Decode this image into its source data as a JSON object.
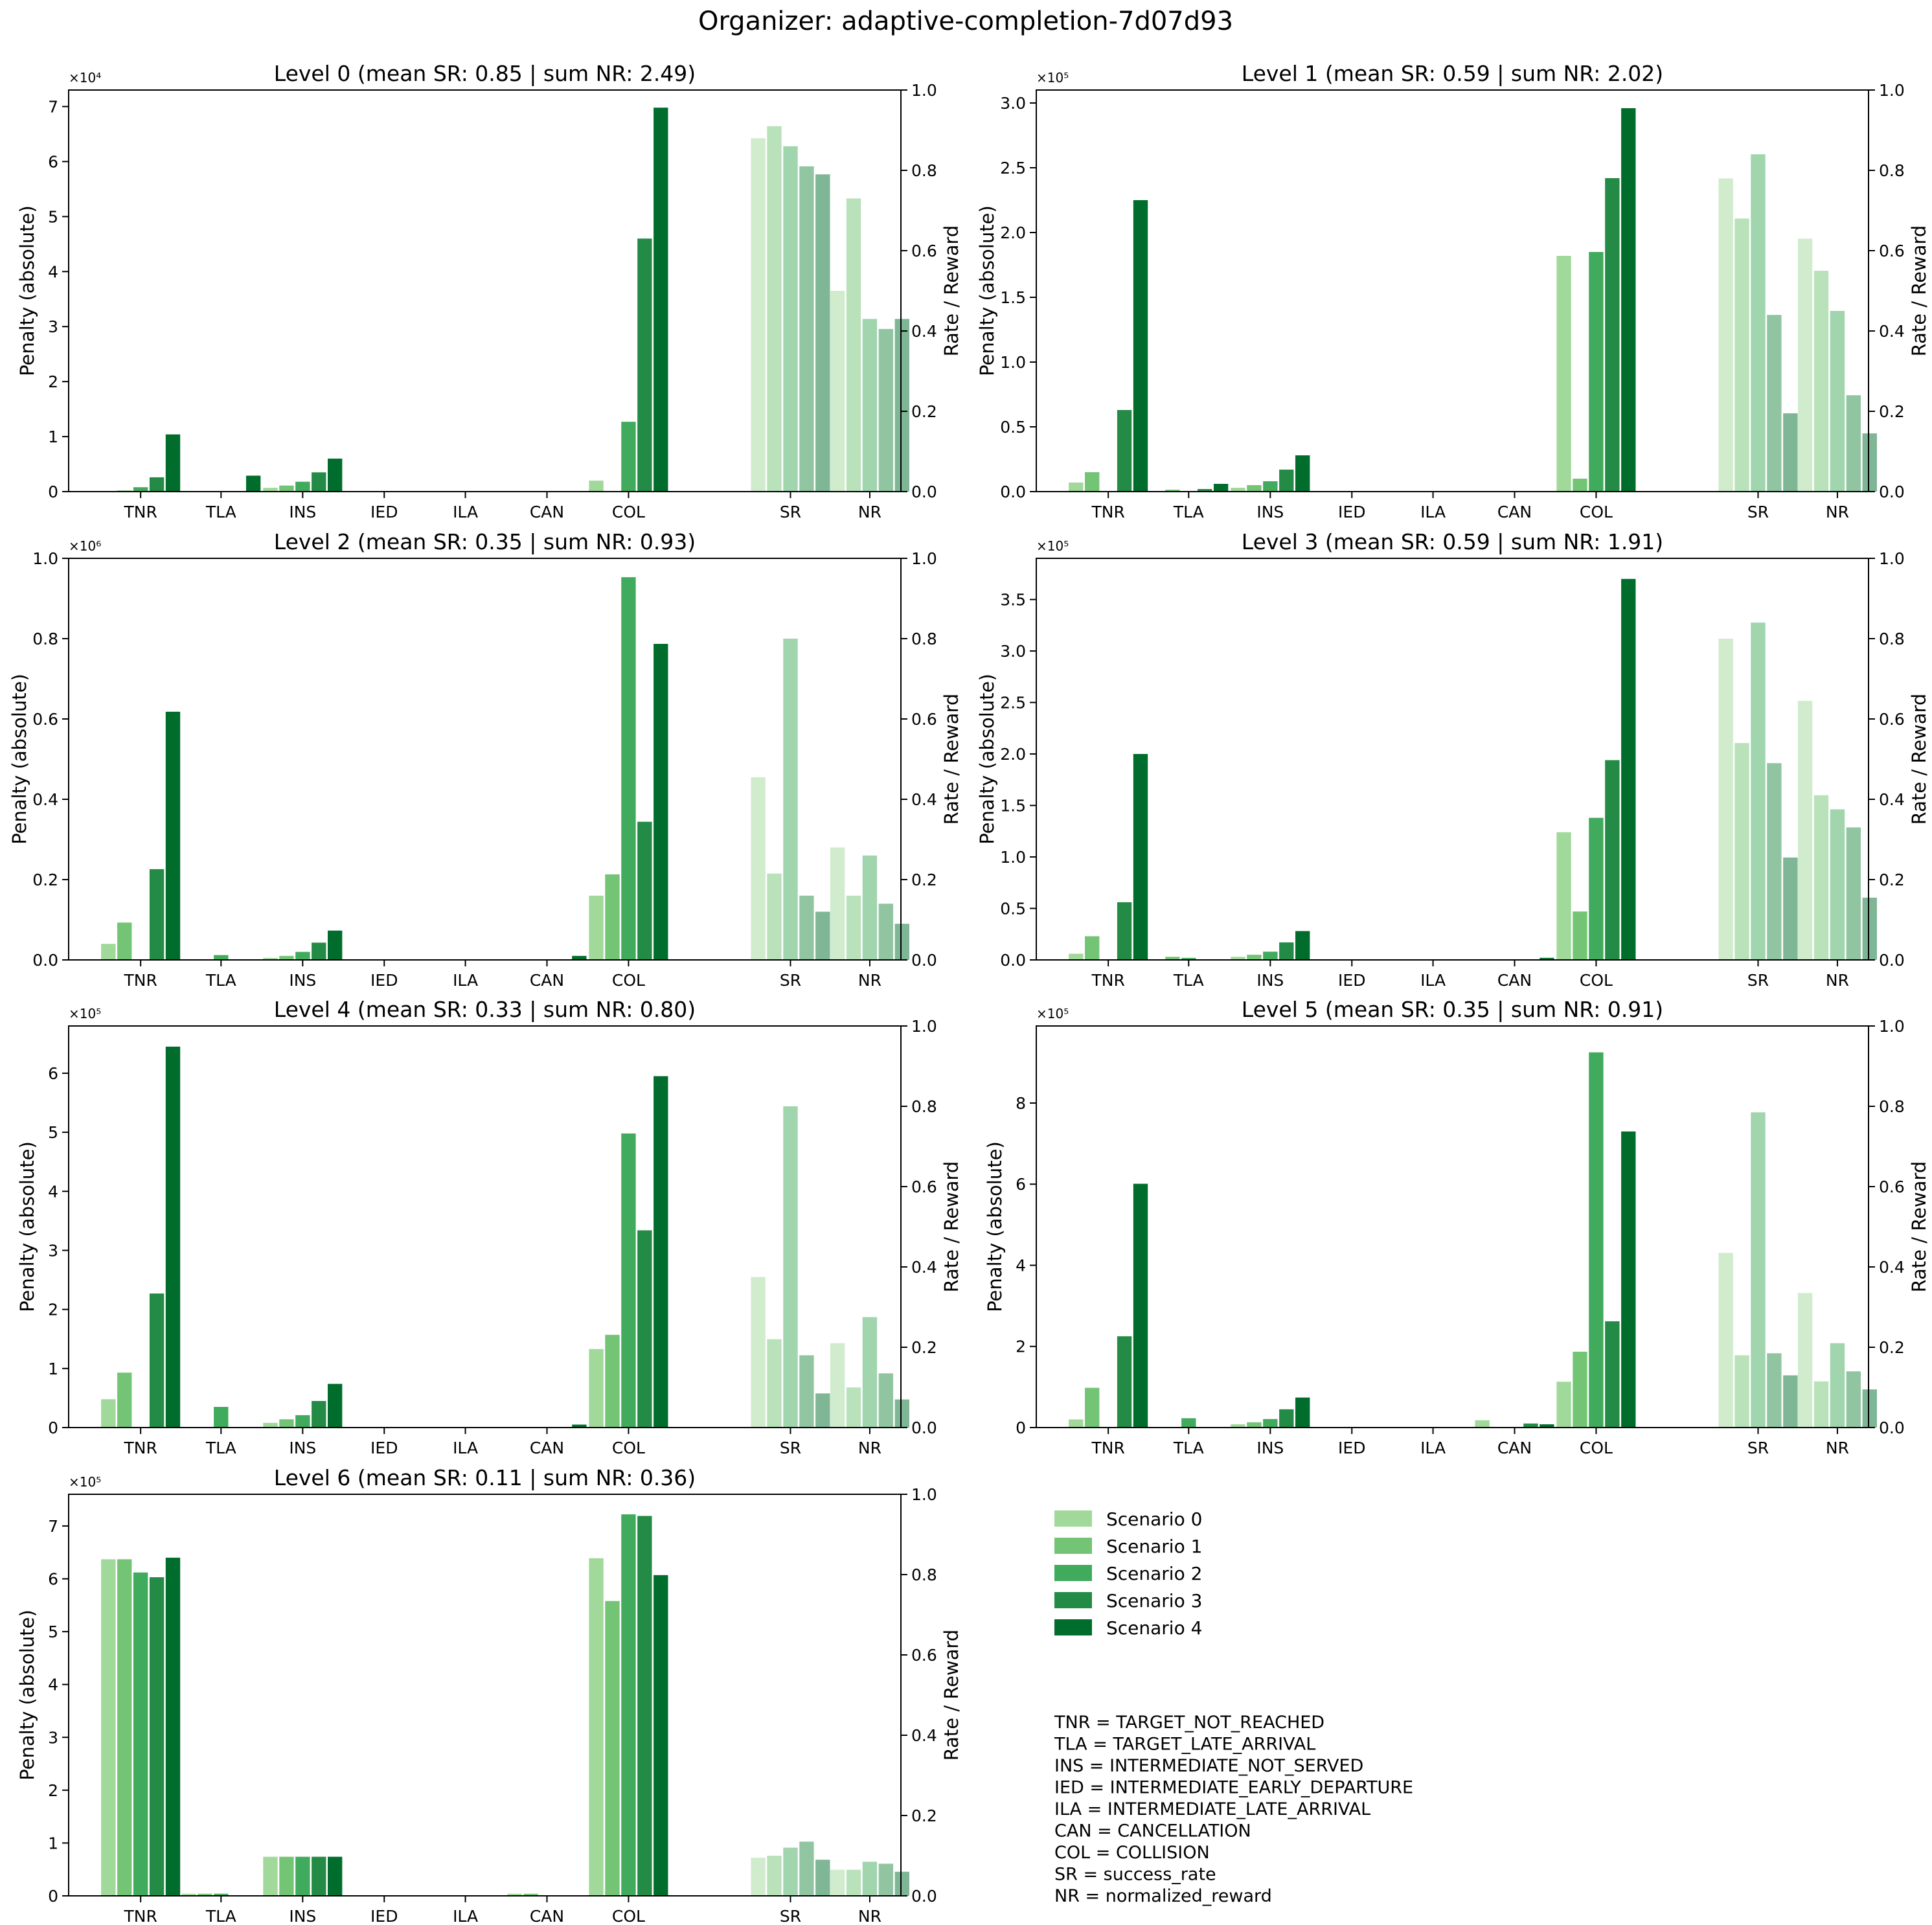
{
  "figure_title": "Organizer: adaptive-completion-7d07d93",
  "left_axis_label": "Penalty (absolute)",
  "right_axis_label": "Rate / Reward",
  "scenario_colors": [
    "#a1d99b",
    "#74c476",
    "#41ab5d",
    "#238b45",
    "#006d2c"
  ],
  "legend": {
    "entries": [
      "Scenario 0",
      "Scenario 1",
      "Scenario 2",
      "Scenario 3",
      "Scenario 4"
    ]
  },
  "abbreviations": [
    "TNR = TARGET_NOT_REACHED",
    "TLA = TARGET_LATE_ARRIVAL",
    "INS = INTERMEDIATE_NOT_SERVED",
    "IED = INTERMEDIATE_EARLY_DEPARTURE",
    "ILA = INTERMEDIATE_LATE_ARRIVAL",
    "CAN = CANCELLATION",
    "COL = COLLISION",
    "SR = success_rate",
    "NR = normalized_reward"
  ],
  "chart_data": [
    {
      "type": "bar",
      "title": "Level 0 (mean SR: 0.85 | sum NR: 2.49)",
      "categories": [
        "TNR",
        "TLA",
        "INS",
        "IED",
        "ILA",
        "CAN",
        "COL",
        "SR",
        "NR"
      ],
      "left_scale_label": "×10⁴",
      "left_ylim": [
        0,
        73000
      ],
      "left_ticks": [
        0,
        10000,
        20000,
        30000,
        40000,
        50000,
        60000,
        70000
      ],
      "left_tick_labels": [
        "0",
        "1",
        "2",
        "3",
        "4",
        "5",
        "6",
        "7"
      ],
      "right_ylim": [
        0,
        1
      ],
      "right_tick_labels": [
        "0.0",
        "0.2",
        "0.4",
        "0.6",
        "0.8",
        "1.0"
      ],
      "series": [
        {
          "name": "Scenario 0",
          "penalties": [
            0,
            0,
            700,
            0,
            0,
            0,
            2000
          ],
          "SR": 0.88,
          "NR": 0.5
        },
        {
          "name": "Scenario 1",
          "penalties": [
            200,
            0,
            1100,
            0,
            0,
            0,
            0
          ],
          "SR": 0.91,
          "NR": 0.73
        },
        {
          "name": "Scenario 2",
          "penalties": [
            800,
            0,
            1800,
            0,
            0,
            0,
            12700
          ],
          "SR": 0.86,
          "NR": 0.43
        },
        {
          "name": "Scenario 3",
          "penalties": [
            2600,
            0,
            3500,
            0,
            0,
            0,
            46000
          ],
          "SR": 0.81,
          "NR": 0.405
        },
        {
          "name": "Scenario 4",
          "penalties": [
            10400,
            2900,
            6000,
            0,
            0,
            0,
            69800
          ],
          "SR": 0.79,
          "NR": 0.43
        }
      ]
    },
    {
      "type": "bar",
      "title": "Level 1 (mean SR: 0.59 | sum NR: 2.02)",
      "categories": [
        "TNR",
        "TLA",
        "INS",
        "IED",
        "ILA",
        "CAN",
        "COL",
        "SR",
        "NR"
      ],
      "left_scale_label": "×10⁵",
      "left_ylim": [
        0,
        310000
      ],
      "left_ticks": [
        0,
        50000,
        100000,
        150000,
        200000,
        250000,
        300000
      ],
      "left_tick_labels": [
        "0.0",
        "0.5",
        "1.0",
        "1.5",
        "2.0",
        "2.5",
        "3.0"
      ],
      "right_ylim": [
        0,
        1
      ],
      "right_tick_labels": [
        "0.0",
        "0.2",
        "0.4",
        "0.6",
        "0.8",
        "1.0"
      ],
      "series": [
        {
          "name": "Scenario 0",
          "penalties": [
            7000,
            500,
            3000,
            0,
            0,
            0,
            182000
          ],
          "SR": 0.78,
          "NR": 0.63
        },
        {
          "name": "Scenario 1",
          "penalties": [
            15000,
            1500,
            5000,
            0,
            0,
            0,
            10000
          ],
          "SR": 0.68,
          "NR": 0.55
        },
        {
          "name": "Scenario 2",
          "penalties": [
            0,
            0,
            8000,
            0,
            0,
            0,
            185000
          ],
          "SR": 0.84,
          "NR": 0.45
        },
        {
          "name": "Scenario 3",
          "penalties": [
            63000,
            2000,
            17000,
            0,
            0,
            0,
            242000
          ],
          "SR": 0.44,
          "NR": 0.24
        },
        {
          "name": "Scenario 4",
          "penalties": [
            225000,
            6000,
            28000,
            0,
            0,
            0,
            296000
          ],
          "SR": 0.195,
          "NR": 0.145
        }
      ]
    },
    {
      "type": "bar",
      "title": "Level 2 (mean SR: 0.35 | sum NR: 0.93)",
      "categories": [
        "TNR",
        "TLA",
        "INS",
        "IED",
        "ILA",
        "CAN",
        "COL",
        "SR",
        "NR"
      ],
      "left_scale_label": "×10⁶",
      "left_ylim": [
        0,
        1000000
      ],
      "left_ticks": [
        0,
        200000,
        400000,
        600000,
        800000,
        1000000
      ],
      "left_tick_labels": [
        "0.0",
        "0.2",
        "0.4",
        "0.6",
        "0.8",
        "1.0"
      ],
      "right_ylim": [
        0,
        1
      ],
      "right_tick_labels": [
        "0.0",
        "0.2",
        "0.4",
        "0.6",
        "0.8",
        "1.0"
      ],
      "series": [
        {
          "name": "Scenario 0",
          "penalties": [
            40000,
            0,
            5000,
            0,
            0,
            0,
            160000
          ],
          "SR": 0.455,
          "NR": 0.28
        },
        {
          "name": "Scenario 1",
          "penalties": [
            93000,
            0,
            10000,
            0,
            0,
            0,
            213000
          ],
          "SR": 0.215,
          "NR": 0.16
        },
        {
          "name": "Scenario 2",
          "penalties": [
            0,
            12000,
            20000,
            0,
            0,
            0,
            953000
          ],
          "SR": 0.8,
          "NR": 0.26
        },
        {
          "name": "Scenario 3",
          "penalties": [
            226000,
            0,
            43000,
            0,
            0,
            0,
            344000
          ],
          "SR": 0.16,
          "NR": 0.14
        },
        {
          "name": "Scenario 4",
          "penalties": [
            618000,
            0,
            73000,
            0,
            0,
            10000,
            787000
          ],
          "SR": 0.12,
          "NR": 0.09
        }
      ]
    },
    {
      "type": "bar",
      "title": "Level 3 (mean SR: 0.59 | sum NR: 1.91)",
      "categories": [
        "TNR",
        "TLA",
        "INS",
        "IED",
        "ILA",
        "CAN",
        "COL",
        "SR",
        "NR"
      ],
      "left_scale_label": "×10⁵",
      "left_ylim": [
        0,
        390000
      ],
      "left_ticks": [
        0,
        50000,
        100000,
        150000,
        200000,
        250000,
        300000,
        350000
      ],
      "left_tick_labels": [
        "0.0",
        "0.5",
        "1.0",
        "1.5",
        "2.0",
        "2.5",
        "3.0",
        "3.5"
      ],
      "right_ylim": [
        0,
        1
      ],
      "right_tick_labels": [
        "0.0",
        "0.2",
        "0.4",
        "0.6",
        "0.8",
        "1.0"
      ],
      "series": [
        {
          "name": "Scenario 0",
          "penalties": [
            6000,
            0,
            3000,
            0,
            0,
            0,
            124000
          ],
          "SR": 0.8,
          "NR": 0.645
        },
        {
          "name": "Scenario 1",
          "penalties": [
            23000,
            3000,
            5000,
            0,
            0,
            0,
            47000
          ],
          "SR": 0.54,
          "NR": 0.41
        },
        {
          "name": "Scenario 2",
          "penalties": [
            0,
            2000,
            8000,
            0,
            0,
            0,
            138000
          ],
          "SR": 0.84,
          "NR": 0.375
        },
        {
          "name": "Scenario 3",
          "penalties": [
            56000,
            0,
            17000,
            0,
            0,
            0,
            194000
          ],
          "SR": 0.49,
          "NR": 0.33
        },
        {
          "name": "Scenario 4",
          "penalties": [
            200000,
            0,
            28000,
            0,
            0,
            2000,
            370000
          ],
          "SR": 0.255,
          "NR": 0.155
        }
      ]
    },
    {
      "type": "bar",
      "title": "Level 4 (mean SR: 0.33 | sum NR: 0.80)",
      "categories": [
        "TNR",
        "TLA",
        "INS",
        "IED",
        "ILA",
        "CAN",
        "COL",
        "SR",
        "NR"
      ],
      "left_scale_label": "×10⁵",
      "left_ylim": [
        0,
        680000
      ],
      "left_ticks": [
        0,
        100000,
        200000,
        300000,
        400000,
        500000,
        600000
      ],
      "left_tick_labels": [
        "0",
        "1",
        "2",
        "3",
        "4",
        "5",
        "6"
      ],
      "right_ylim": [
        0,
        1
      ],
      "right_tick_labels": [
        "0.0",
        "0.2",
        "0.4",
        "0.6",
        "0.8",
        "1.0"
      ],
      "series": [
        {
          "name": "Scenario 0",
          "penalties": [
            48000,
            0,
            8000,
            0,
            0,
            0,
            133000
          ],
          "SR": 0.375,
          "NR": 0.21
        },
        {
          "name": "Scenario 1",
          "penalties": [
            93000,
            0,
            14000,
            0,
            0,
            0,
            157000
          ],
          "SR": 0.22,
          "NR": 0.1
        },
        {
          "name": "Scenario 2",
          "penalties": [
            0,
            35000,
            21000,
            0,
            0,
            0,
            498000
          ],
          "SR": 0.8,
          "NR": 0.275
        },
        {
          "name": "Scenario 3",
          "penalties": [
            227000,
            0,
            45000,
            0,
            0,
            0,
            334000
          ],
          "SR": 0.18,
          "NR": 0.135
        },
        {
          "name": "Scenario 4",
          "penalties": [
            645000,
            0,
            74000,
            0,
            0,
            5000,
            595000
          ],
          "SR": 0.085,
          "NR": 0.07
        }
      ]
    },
    {
      "type": "bar",
      "title": "Level 5 (mean SR: 0.35 | sum NR: 0.91)",
      "categories": [
        "TNR",
        "TLA",
        "INS",
        "IED",
        "ILA",
        "CAN",
        "COL",
        "SR",
        "NR"
      ],
      "left_scale_label": "×10⁵",
      "left_ylim": [
        0,
        990000
      ],
      "left_ticks": [
        0,
        200000,
        400000,
        600000,
        800000
      ],
      "left_tick_labels": [
        "0",
        "2",
        "4",
        "6",
        "8"
      ],
      "right_ylim": [
        0,
        1
      ],
      "right_tick_labels": [
        "0.0",
        "0.2",
        "0.4",
        "0.6",
        "0.8",
        "1.0"
      ],
      "series": [
        {
          "name": "Scenario 0",
          "penalties": [
            20000,
            0,
            8000,
            0,
            0,
            18000,
            113000
          ],
          "SR": 0.435,
          "NR": 0.335
        },
        {
          "name": "Scenario 1",
          "penalties": [
            98000,
            0,
            13000,
            0,
            0,
            0,
            187000
          ],
          "SR": 0.18,
          "NR": 0.115
        },
        {
          "name": "Scenario 2",
          "penalties": [
            0,
            23000,
            21000,
            0,
            0,
            0,
            925000
          ],
          "SR": 0.785,
          "NR": 0.21
        },
        {
          "name": "Scenario 3",
          "penalties": [
            225000,
            0,
            45000,
            0,
            0,
            10000,
            262000
          ],
          "SR": 0.185,
          "NR": 0.14
        },
        {
          "name": "Scenario 4",
          "penalties": [
            601000,
            0,
            74000,
            0,
            0,
            8000,
            730000
          ],
          "SR": 0.13,
          "NR": 0.095
        }
      ]
    },
    {
      "type": "bar",
      "title": "Level 6 (mean SR: 0.11 | sum NR: 0.36)",
      "categories": [
        "TNR",
        "TLA",
        "INS",
        "IED",
        "ILA",
        "CAN",
        "COL",
        "SR",
        "NR"
      ],
      "left_scale_label": "×10⁵",
      "left_ylim": [
        0,
        760000
      ],
      "left_ticks": [
        0,
        100000,
        200000,
        300000,
        400000,
        500000,
        600000,
        700000
      ],
      "left_tick_labels": [
        "0",
        "1",
        "2",
        "3",
        "4",
        "5",
        "6",
        "7"
      ],
      "right_ylim": [
        0,
        1
      ],
      "right_tick_labels": [
        "0.0",
        "0.2",
        "0.4",
        "0.6",
        "0.8",
        "1.0"
      ],
      "series": [
        {
          "name": "Scenario 0",
          "penalties": [
            637000,
            4000,
            74000,
            0,
            0,
            4000,
            639000
          ],
          "SR": 0.095,
          "NR": 0.065
        },
        {
          "name": "Scenario 1",
          "penalties": [
            637000,
            4000,
            74000,
            0,
            0,
            4000,
            558000
          ],
          "SR": 0.1,
          "NR": 0.065
        },
        {
          "name": "Scenario 2",
          "penalties": [
            612000,
            4000,
            74000,
            0,
            0,
            0,
            722000
          ],
          "SR": 0.12,
          "NR": 0.085
        },
        {
          "name": "Scenario 3",
          "penalties": [
            603000,
            0,
            74000,
            0,
            0,
            0,
            719000
          ],
          "SR": 0.135,
          "NR": 0.08
        },
        {
          "name": "Scenario 4",
          "penalties": [
            640000,
            0,
            74000,
            0,
            0,
            0,
            607000
          ],
          "SR": 0.09,
          "NR": 0.06
        }
      ]
    }
  ]
}
